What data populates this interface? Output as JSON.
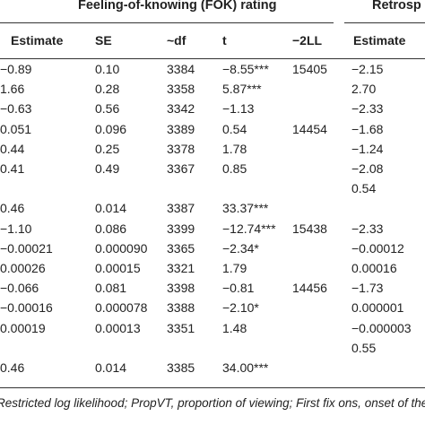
{
  "groups": {
    "fok": "Feeling-of-knowing (FOK) rating",
    "retro": "Retrosp"
  },
  "headers": [
    "Estimate",
    "SE",
    "~df",
    "t",
    "−2LL",
    "Estimate"
  ],
  "rows": [
    [
      "−0.89",
      "0.10",
      "3384",
      "−8.55***",
      "15405",
      "−2.15"
    ],
    [
      "1.66",
      "0.28",
      "3358",
      "5.87***",
      "",
      "2.70"
    ],
    [
      "−0.63",
      "0.56",
      "3342",
      "−1.13",
      "",
      "−2.33"
    ],
    [
      "0.051",
      "0.096",
      "3389",
      "0.54",
      "14454",
      "−1.68"
    ],
    [
      "0.44",
      "0.25",
      "3378",
      "1.78",
      "",
      "−1.24"
    ],
    [
      "0.41",
      "0.49",
      "3367",
      "0.85",
      "",
      "−2.08"
    ],
    [
      "",
      "",
      "",
      "",
      "",
      "0.54"
    ],
    [
      "0.46",
      "0.014",
      "3387",
      "33.37***",
      "",
      ""
    ],
    [
      "−1.10",
      "0.086",
      "3399",
      "−12.74***",
      "15438",
      "−2.33"
    ],
    [
      "−0.00021",
      "0.000090",
      "3365",
      "−2.34*",
      "",
      "−0.00012"
    ],
    [
      "0.00026",
      "0.00015",
      "3321",
      "1.79",
      "",
      "0.00016"
    ],
    [
      "−0.066",
      "0.081",
      "3398",
      "−0.81",
      "14456",
      "−1.73"
    ],
    [
      "−0.00016",
      "0.000078",
      "3388",
      "−2.10*",
      "",
      "0.000001"
    ],
    [
      "0.00019",
      "0.00013",
      "3351",
      "1.48",
      "",
      "−0.000003"
    ],
    [
      "",
      "",
      "",
      "",
      "",
      "0.55"
    ],
    [
      "0.46",
      "0.014",
      "3385",
      "34.00***",
      "",
      ""
    ]
  ],
  "footnote": "Restricted log likelihood; PropVT, proportion of viewing; First fix ons, onset of the"
}
